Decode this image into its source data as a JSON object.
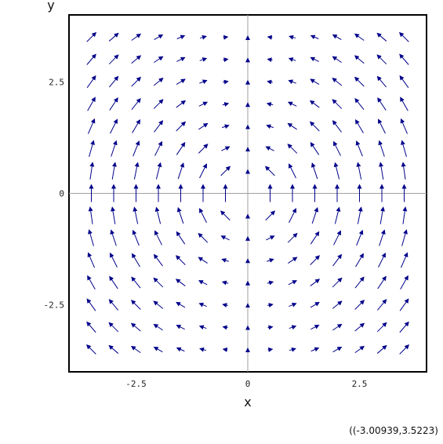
{
  "chart_data": {
    "type": "vector_field",
    "xlabel": "x",
    "ylabel": "y",
    "xlim": [
      -4.0,
      4.0
    ],
    "ylim": [
      -4.0,
      4.0
    ],
    "xticks": [
      {
        "value": -2.5,
        "label": "-2.5"
      },
      {
        "value": 0,
        "label": "0"
      },
      {
        "value": 2.5,
        "label": "2.5"
      }
    ],
    "yticks": [
      {
        "value": 2.5,
        "label": "2.5"
      },
      {
        "value": 0,
        "label": "0"
      },
      {
        "value": -2.5,
        "label": "-2.5"
      }
    ],
    "grid": false,
    "field": {
      "u": "-x*y/(x^2+y^2)",
      "v": "x^2/(x^2+y^2)"
    },
    "samples": {
      "x_min": -3.5,
      "x_max": 3.5,
      "y_min": -3.5,
      "y_max": 3.5,
      "n": 15
    },
    "arrow_color": "#00008b",
    "axis_color": "#a0a0a0",
    "frame_color": "#000000"
  },
  "coord_readout": "((-3.00939,3.5223)"
}
